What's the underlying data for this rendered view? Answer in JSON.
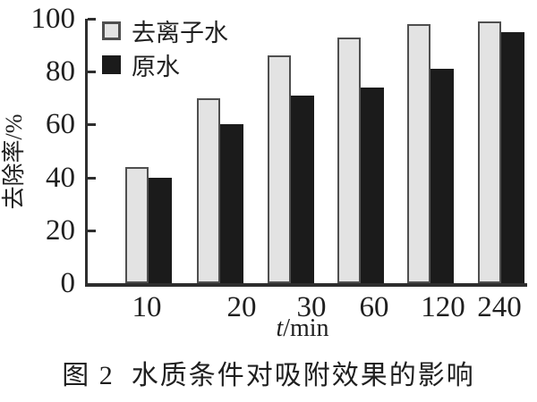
{
  "figure": {
    "caption": "图 2  水质条件对吸附效果的影响"
  },
  "chart_data": {
    "type": "bar",
    "title": "",
    "xlabel": "t/min",
    "xlabel_parts": {
      "variable": "t",
      "unit": "/min"
    },
    "ylabel": "去除率/%",
    "categories": [
      "10",
      "20",
      "30",
      "60",
      "120",
      "240"
    ],
    "series": [
      {
        "name": "去离子水",
        "fill": "#e3e3e3",
        "border": "#4f4f4f",
        "values": [
          44,
          70,
          86,
          93,
          98,
          99
        ]
      },
      {
        "name": "原水",
        "fill": "#1b1b1b",
        "border": "#1b1b1b",
        "values": [
          40,
          60,
          71,
          74,
          81,
          95
        ]
      }
    ],
    "ylim": [
      0,
      100
    ],
    "yticks": [
      0,
      20,
      40,
      60,
      80,
      100
    ],
    "legend_position": "top-left",
    "grid": false,
    "axis_color": "#2e2e2e",
    "background_color": "#ffffff"
  }
}
